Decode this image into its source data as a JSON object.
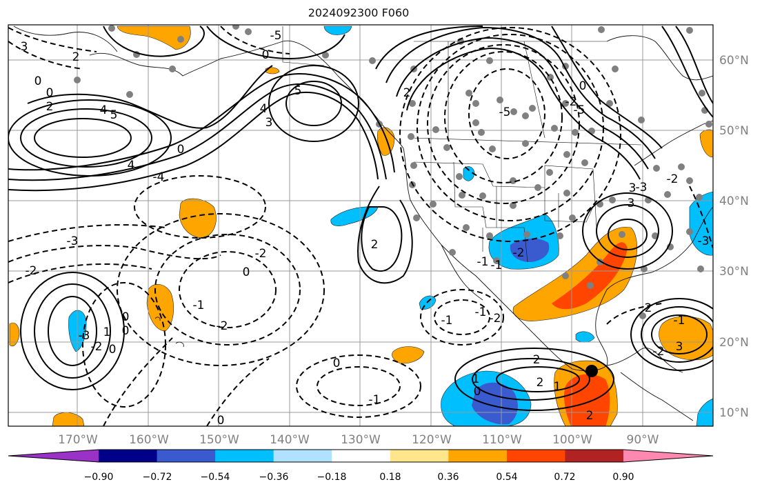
{
  "title": "2024092300 F060",
  "lon_ticks": [
    "170°W",
    "160°W",
    "150°W",
    "140°W",
    "130°W",
    "120°W",
    "110°W",
    "100°W",
    "90°W"
  ],
  "lat_ticks": [
    "60°N",
    "50°N",
    "40°N",
    "30°N",
    "20°N",
    "10°N"
  ],
  "contour_labels": [
    {
      "id": "c1",
      "text": "3"
    },
    {
      "id": "c2",
      "text": "2"
    },
    {
      "id": "c3",
      "text": "0"
    },
    {
      "id": "c4",
      "text": "0"
    },
    {
      "id": "c5",
      "text": "2"
    },
    {
      "id": "c6",
      "text": "4"
    },
    {
      "id": "c7",
      "text": "5"
    },
    {
      "id": "c8",
      "text": "-5"
    },
    {
      "id": "c9",
      "text": "0"
    },
    {
      "id": "c10",
      "text": "5"
    },
    {
      "id": "c11",
      "text": "4"
    },
    {
      "id": "c12",
      "text": "3"
    },
    {
      "id": "c13",
      "text": "0"
    },
    {
      "id": "c14",
      "text": "4"
    },
    {
      "id": "c15",
      "text": "-4"
    },
    {
      "id": "c16",
      "text": "-3"
    },
    {
      "id": "c17",
      "text": "-2"
    },
    {
      "id": "c18",
      "text": "0"
    },
    {
      "id": "c19",
      "text": "-2"
    },
    {
      "id": "c20",
      "text": "-1"
    },
    {
      "id": "c21",
      "text": "-2"
    },
    {
      "id": "c22",
      "text": "0"
    },
    {
      "id": "c23",
      "text": "0"
    },
    {
      "id": "c24",
      "text": "-3"
    },
    {
      "id": "c25",
      "text": "-2"
    },
    {
      "id": "c26",
      "text": "0"
    },
    {
      "id": "c27",
      "text": "2"
    },
    {
      "id": "c28",
      "text": "-5"
    },
    {
      "id": "c29",
      "text": "0"
    },
    {
      "id": "c30",
      "text": "-2"
    },
    {
      "id": "c31",
      "text": "-1"
    },
    {
      "id": "c32",
      "text": "-2"
    },
    {
      "id": "c33",
      "text": "-2"
    },
    {
      "id": "c34",
      "text": "2"
    },
    {
      "id": "c35",
      "text": "1"
    },
    {
      "id": "c36",
      "text": "2"
    },
    {
      "id": "c37",
      "text": "1"
    },
    {
      "id": "c38",
      "text": "0"
    },
    {
      "id": "c39",
      "text": "-1"
    },
    {
      "id": "c40",
      "text": "3"
    },
    {
      "id": "c41",
      "text": "3"
    },
    {
      "id": "c42",
      "text": "-3"
    },
    {
      "id": "c43",
      "text": "2"
    },
    {
      "id": "c44",
      "text": "-2"
    },
    {
      "id": "c45",
      "text": "-1"
    },
    {
      "id": "c46",
      "text": "0"
    },
    {
      "id": "c47",
      "text": "2"
    },
    {
      "id": "c48",
      "text": "-1"
    },
    {
      "id": "c49",
      "text": "0"
    },
    {
      "id": "c50",
      "text": "-5"
    },
    {
      "id": "c51",
      "text": "-2"
    },
    {
      "id": "c52",
      "text": "-1"
    },
    {
      "id": "c53",
      "text": "3"
    },
    {
      "id": "c54",
      "text": "-3"
    },
    {
      "id": "c55",
      "text": "1"
    },
    {
      "id": "c56",
      "text": "2"
    },
    {
      "id": "c57",
      "text": "-1"
    }
  ],
  "colorbar": {
    "ticks": [
      "−0.90",
      "−0.72",
      "−0.54",
      "−0.36",
      "−0.18",
      "0.18",
      "0.36",
      "0.54",
      "0.72",
      "0.90"
    ],
    "colors": [
      "#9b32c8",
      "#00008b",
      "#3a5bd0",
      "#00bfff",
      "#b0e2ff",
      "#ffffff",
      "#ffe68a",
      "#ffa500",
      "#ff4500",
      "#b22222",
      "#ff88b0"
    ]
  }
}
